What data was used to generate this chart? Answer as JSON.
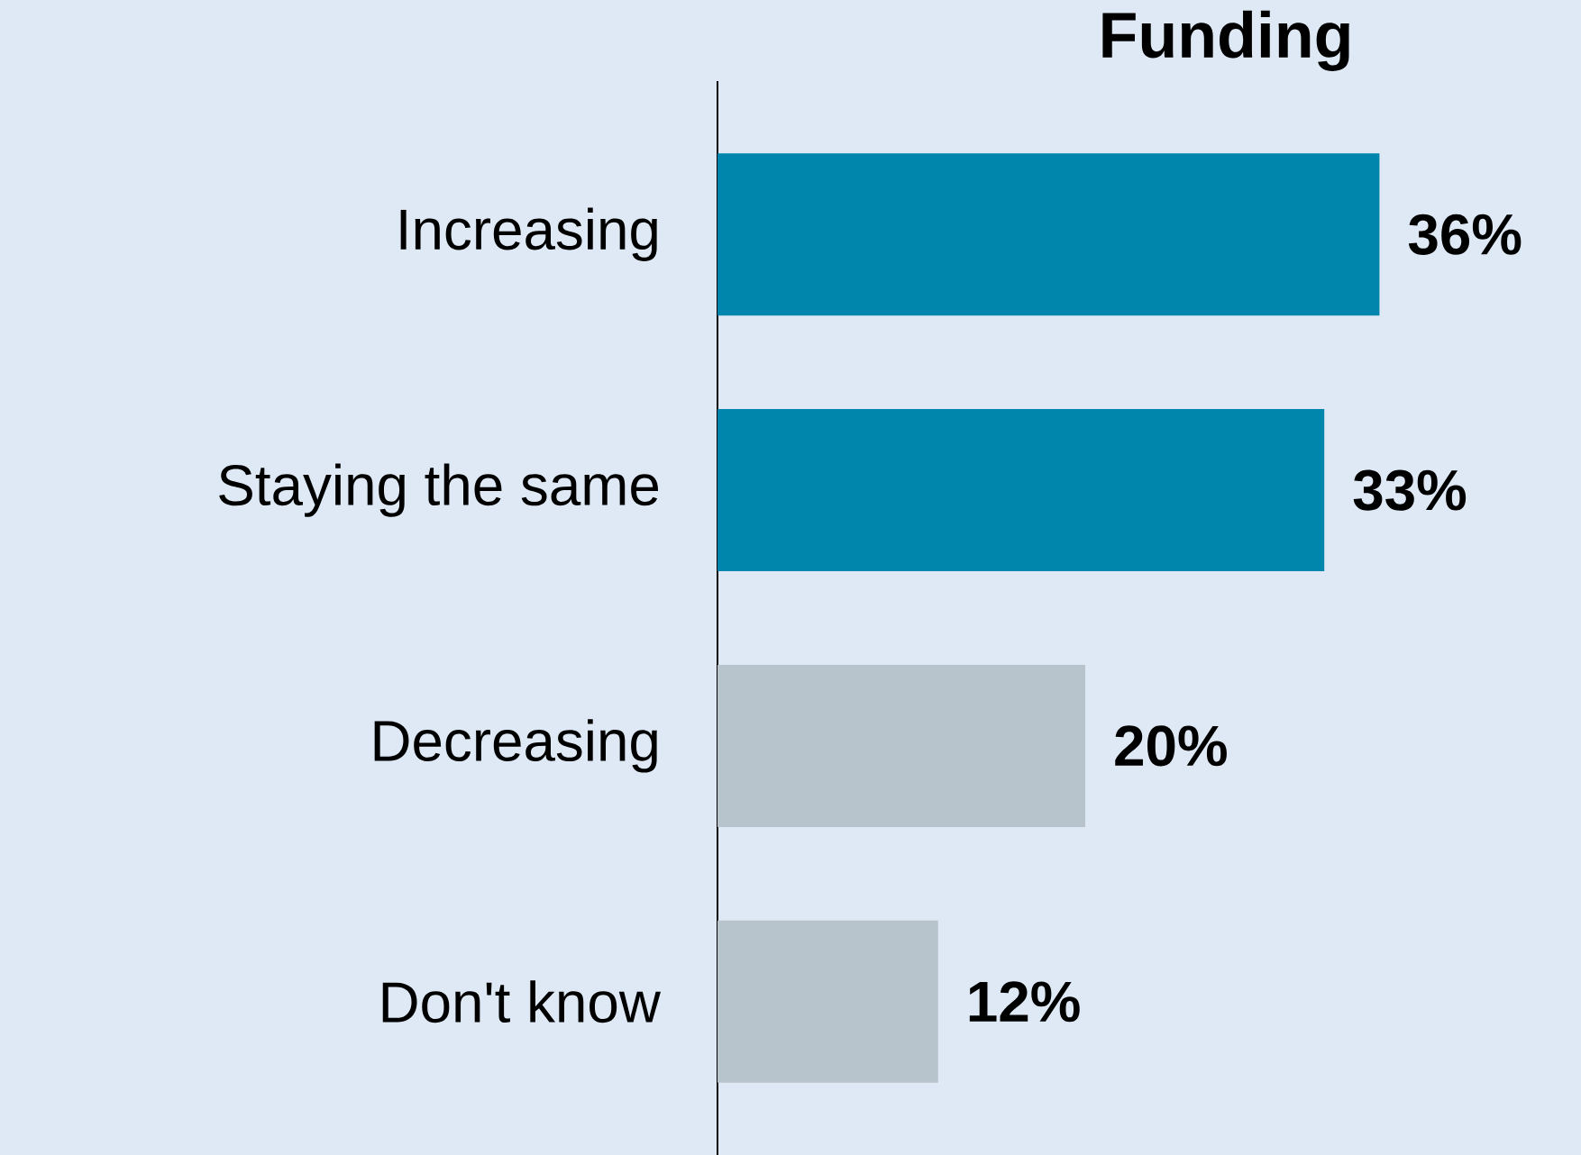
{
  "chart_data": {
    "type": "bar",
    "orientation": "horizontal",
    "title": "Funding",
    "categories": [
      "Increasing",
      "Staying the same",
      "Decreasing",
      "Don't know"
    ],
    "values": [
      36,
      33,
      20,
      12
    ],
    "colors": [
      "#0085ad",
      "#0085ad",
      "#b8c4cb",
      "#b8c4cb"
    ],
    "value_labels": [
      "36%",
      "33%",
      "20%",
      "12%"
    ]
  }
}
